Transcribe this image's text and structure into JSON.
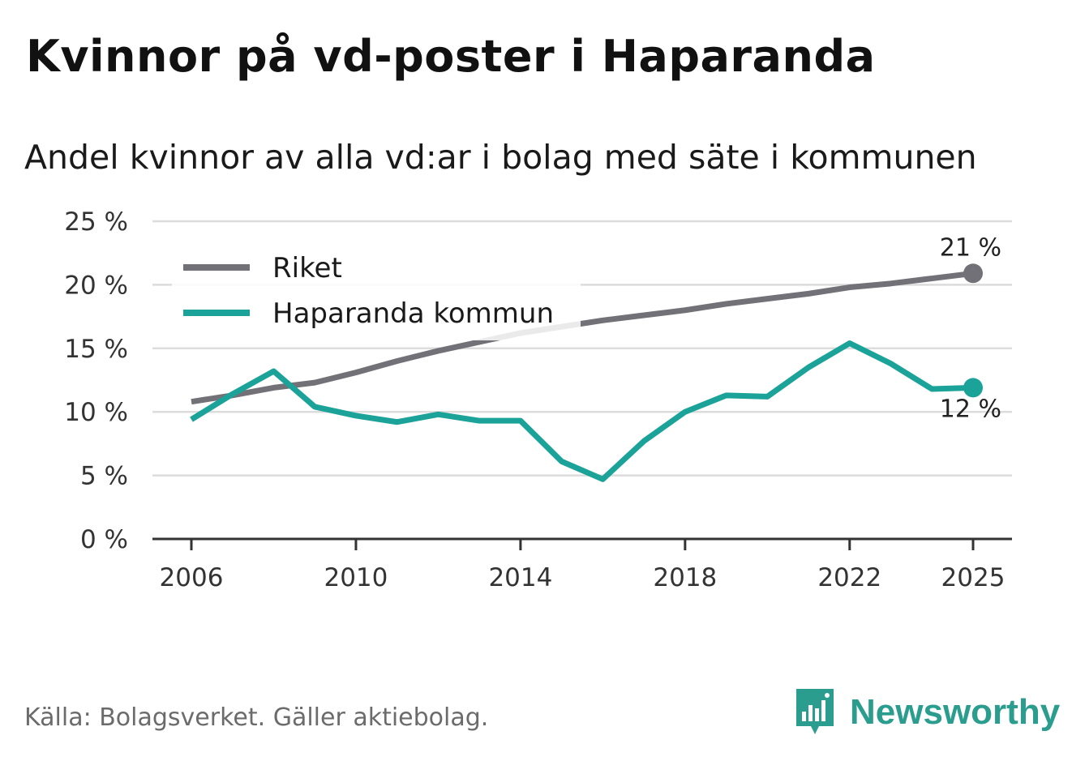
{
  "title": "Kvinnor på vd-poster i Haparanda",
  "subtitle": "Andel kvinnor av alla vd:ar i bolag med säte i kommunen",
  "source": "Källa: Bolagsverket. Gäller aktiebolag.",
  "brand": "Newsworthy",
  "colors": {
    "riket": "#727177",
    "haparanda": "#1ba39a",
    "grid": "#dcdcdc",
    "axis": "#333333"
  },
  "chart_data": {
    "type": "line",
    "title": "Kvinnor på vd-poster i Haparanda",
    "subtitle": "Andel kvinnor av alla vd:ar i bolag med säte i kommunen",
    "xlabel": "",
    "ylabel": "",
    "ylim": [
      0,
      25
    ],
    "xlim": [
      2006,
      2025
    ],
    "y_ticks": [
      0,
      5,
      10,
      15,
      20,
      25
    ],
    "y_tick_labels": [
      "0 %",
      "5 %",
      "10 %",
      "15 %",
      "20 %",
      "25 %"
    ],
    "x_ticks": [
      2006,
      2010,
      2014,
      2018,
      2022,
      2025
    ],
    "x_tick_labels": [
      "2006",
      "2010",
      "2014",
      "2018",
      "2022",
      "2025"
    ],
    "grid": true,
    "legend_position": "top-left",
    "x": [
      2006,
      2007,
      2008,
      2009,
      2010,
      2011,
      2012,
      2013,
      2014,
      2015,
      2016,
      2017,
      2018,
      2019,
      2020,
      2021,
      2022,
      2023,
      2024,
      2025
    ],
    "series": [
      {
        "name": "Riket",
        "color": "#727177",
        "values": [
          10.8,
          11.3,
          11.9,
          12.3,
          13.1,
          14.0,
          14.8,
          15.5,
          16.2,
          16.7,
          17.2,
          17.6,
          18.0,
          18.5,
          18.9,
          19.3,
          19.8,
          20.1,
          20.5,
          20.9
        ],
        "end_label": "21 %"
      },
      {
        "name": "Haparanda kommun",
        "color": "#1ba39a",
        "values": [
          9.4,
          11.4,
          13.2,
          10.4,
          9.7,
          9.2,
          9.8,
          9.3,
          9.3,
          6.1,
          4.7,
          7.7,
          10.0,
          11.3,
          11.2,
          13.5,
          15.4,
          13.8,
          11.8,
          11.9
        ],
        "end_label": "12 %"
      }
    ]
  }
}
